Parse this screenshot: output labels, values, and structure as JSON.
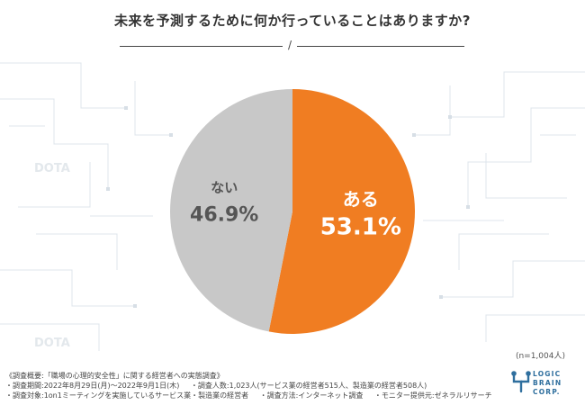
{
  "title": "未来を予測するために何か行っていることはありますか?",
  "title_separator": "/",
  "chart_data": {
    "type": "pie",
    "slices": [
      {
        "label": "ある",
        "value": 53.1,
        "display": "53.1%",
        "color": "#f07d22"
      },
      {
        "label": "ない",
        "value": 46.9,
        "display": "46.9%",
        "color": "#c8c8c8"
      }
    ],
    "start_angle_deg": 0,
    "direction": "clockwise",
    "sample_note": "(n=1,004人)"
  },
  "watermark": "DOTA",
  "footer": {
    "line1": "《調査概要:「職場の心理的安全性」に関する経営者への実態調査》",
    "period": "・調査期間:2022年8月29日(月)〜2022年9月1日(木)",
    "respondents": "・調査人数:1,023人(サービス業の経営者515人、製造業の経営者508人)",
    "target": "・調査対象:1on1ミーティングを実施しているサービス業・製造業の経営者",
    "method": "・調査方法:インターネット調査",
    "provider": "・モニター提供元:ゼネラルリサーチ"
  },
  "logo": {
    "line1": "LOGIC",
    "line2": "BRAIN",
    "line3": "CORP.",
    "color": "#2f6f9e"
  }
}
